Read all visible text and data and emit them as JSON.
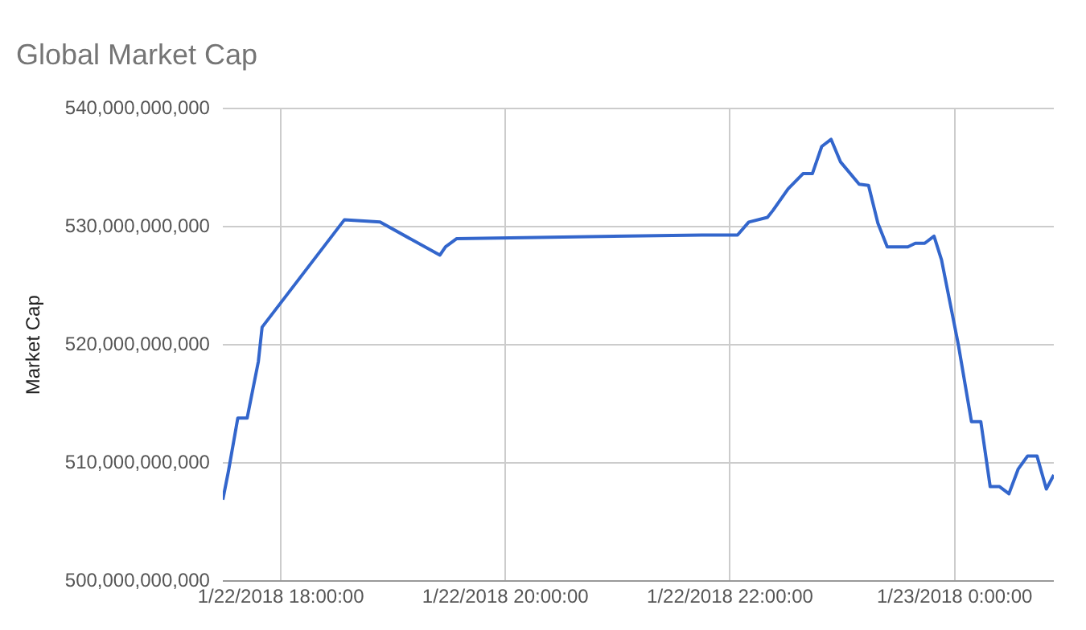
{
  "chart_data": {
    "type": "line",
    "title": "Global Market Cap",
    "ylabel": "Market Cap",
    "x": [
      "2018-01-22T17:29",
      "2018-01-22T17:32",
      "2018-01-22T17:37",
      "2018-01-22T17:42",
      "2018-01-22T17:48",
      "2018-01-22T17:50",
      "2018-01-22T18:34",
      "2018-01-22T18:53",
      "2018-01-22T19:25",
      "2018-01-22T19:28",
      "2018-01-22T19:34",
      "2018-01-22T20:17",
      "2018-01-22T21:45",
      "2018-01-22T22:04",
      "2018-01-22T22:10",
      "2018-01-22T22:20",
      "2018-01-22T22:23",
      "2018-01-22T22:31",
      "2018-01-22T22:39",
      "2018-01-22T22:44",
      "2018-01-22T22:49",
      "2018-01-22T22:54",
      "2018-01-22T22:59",
      "2018-01-22T23:09",
      "2018-01-22T23:14",
      "2018-01-22T23:19",
      "2018-01-22T23:24",
      "2018-01-22T23:35",
      "2018-01-22T23:39",
      "2018-01-22T23:44",
      "2018-01-22T23:49",
      "2018-01-22T23:53",
      "2018-01-23T00:02",
      "2018-01-23T00:09",
      "2018-01-23T00:14",
      "2018-01-23T00:19",
      "2018-01-23T00:24",
      "2018-01-23T00:29",
      "2018-01-23T00:34",
      "2018-01-23T00:39",
      "2018-01-23T00:44",
      "2018-01-23T00:49",
      "2018-01-23T00:53"
    ],
    "series": [
      {
        "color": "#3366cc",
        "values": [
          506900000000,
          509300000000,
          513800000000,
          513800000000,
          518600000000,
          521500000000,
          530600000000,
          530400000000,
          527600000000,
          528300000000,
          529000000000,
          529100000000,
          529300000000,
          529300000000,
          530400000000,
          530800000000,
          531400000000,
          533200000000,
          534500000000,
          534500000000,
          536800000000,
          537400000000,
          535500000000,
          533600000000,
          533500000000,
          530300000000,
          528300000000,
          528300000000,
          528600000000,
          528600000000,
          529200000000,
          527200000000,
          520000000000,
          513500000000,
          513500000000,
          508000000000,
          508000000000,
          507400000000,
          509500000000,
          510600000000,
          510600000000,
          507800000000,
          509000000000
        ]
      }
    ],
    "xlim": [
      "2018-01-22T17:29",
      "2018-01-23T00:53"
    ],
    "xticks": [
      {
        "value": "2018-01-22T18:00",
        "label": "1/22/2018 18:00:00"
      },
      {
        "value": "2018-01-22T20:00",
        "label": "1/22/2018 20:00:00"
      },
      {
        "value": "2018-01-22T22:00",
        "label": "1/22/2018 22:00:00"
      },
      {
        "value": "2018-01-23T00:00",
        "label": "1/23/2018 0:00:00"
      }
    ],
    "ylim": [
      500000000000,
      540000000000
    ],
    "yticks": [
      {
        "value": 500000000000,
        "label": "500,000,000,000"
      },
      {
        "value": 510000000000,
        "label": "510,000,000,000"
      },
      {
        "value": 520000000000,
        "label": "520,000,000,000"
      },
      {
        "value": 530000000000,
        "label": "530,000,000,000"
      },
      {
        "value": 540000000000,
        "label": "540,000,000,000"
      }
    ],
    "grid": true,
    "legend": false,
    "marker": "none",
    "line_style": "solid"
  }
}
